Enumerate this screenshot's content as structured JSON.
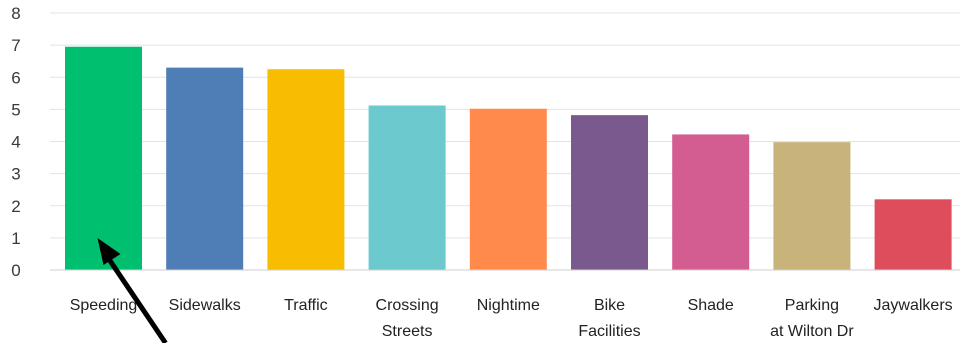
{
  "chart_data": {
    "type": "bar",
    "categories": [
      [
        "Speeding"
      ],
      [
        "Sidewalks"
      ],
      [
        "Traffic"
      ],
      [
        "Crossing",
        "Streets"
      ],
      [
        "Nightime"
      ],
      [
        "Bike",
        "Facilities"
      ],
      [
        "Shade"
      ],
      [
        "Parking",
        "at Wilton Dr"
      ],
      [
        "Jaywalkers"
      ]
    ],
    "values": [
      6.95,
      6.3,
      6.25,
      5.12,
      5.02,
      4.82,
      4.22,
      3.98,
      2.2
    ],
    "colors": [
      "#00c070",
      "#4f7db5",
      "#f8bd00",
      "#6cc9ce",
      "#ff8a4c",
      "#7a5a8e",
      "#d35d90",
      "#c8b47a",
      "#dd4d5c"
    ],
    "yticks": [
      "0",
      "1",
      "2",
      "3",
      "4",
      "5",
      "6",
      "7",
      "8"
    ],
    "ylim": [
      0,
      8
    ],
    "grid": true,
    "title": "",
    "xlabel": "",
    "ylabel": "",
    "annotation": {
      "type": "arrow",
      "target": "Speeding"
    }
  }
}
